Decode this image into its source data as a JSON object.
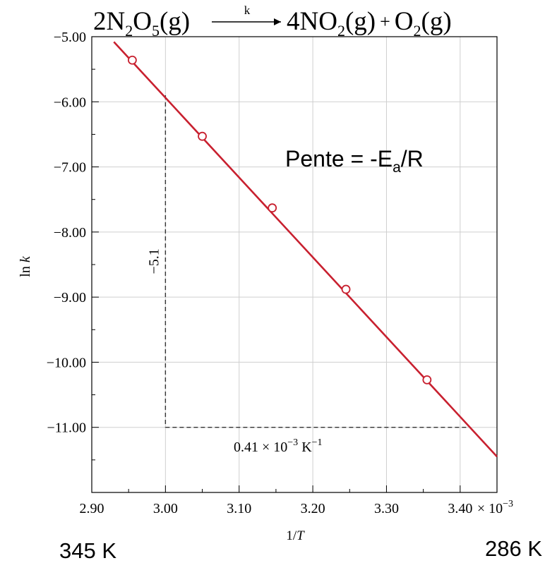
{
  "chart_data": {
    "type": "scatter",
    "title": {
      "lhs_coef": "2",
      "lhs_species": "N",
      "lhs_sub1": "2",
      "lhs_o": "O",
      "lhs_sub2": "5",
      "lhs_phase": "(g)",
      "arrow_label": "k",
      "rhs1_coef": "4",
      "rhs1_species": "NO",
      "rhs1_sub": "2",
      "rhs1_phase": "(g)",
      "plus": "+",
      "rhs2_species": "O",
      "rhs2_sub": "2",
      "rhs2_phase": "(g)"
    },
    "ylabel": {
      "prefix": "ln ",
      "var": "k"
    },
    "xlabel": {
      "prefix": "1/",
      "var": "T"
    },
    "xlim": [
      2.9,
      3.45
    ],
    "ylim": [
      -12.0,
      -5.0
    ],
    "x_ticks": [
      2.9,
      3.0,
      3.1,
      3.2,
      3.3,
      3.4
    ],
    "x_tick_labels": [
      "2.90",
      "3.00",
      "3.10",
      "3.20",
      "3.30",
      "3.40"
    ],
    "x_scale_label": {
      "times": "× 10",
      "exp": "−3"
    },
    "y_ticks": [
      -5,
      -6,
      -7,
      -8,
      -9,
      -10,
      -11
    ],
    "y_tick_labels": [
      "−5.00",
      "−6.00",
      "−7.00",
      "−8.00",
      "−9.00",
      "−10.00",
      "−11.00"
    ],
    "grid": true,
    "points": [
      {
        "x": 2.955,
        "y": -5.36
      },
      {
        "x": 3.05,
        "y": -6.53
      },
      {
        "x": 3.145,
        "y": -7.63
      },
      {
        "x": 3.245,
        "y": -8.88
      },
      {
        "x": 3.355,
        "y": -10.27
      }
    ],
    "fit_line": {
      "x": [
        2.93,
        3.45
      ],
      "y": [
        -5.08,
        -11.45
      ]
    },
    "slope_triangle": {
      "vertical": {
        "x": 3.0,
        "y_top": -5.9,
        "y_bottom": -11.0
      },
      "horizontal": {
        "y": -11.0,
        "x_left": 3.0,
        "x_right": 3.41
      },
      "rise_label": "−5.1",
      "run_label": {
        "value": "0.41 × 10",
        "exp": "−3",
        "unit": " K",
        "unit_exp": "−1"
      }
    },
    "slope_annotation": {
      "text": "Pente = -E",
      "sub": "a",
      "tail": "/R"
    },
    "temperature_labels": {
      "left": "345 K",
      "right": "286 K"
    },
    "colors": {
      "line": "#c8202f",
      "grid": "#cfcfcf",
      "axis": "#000000",
      "dash": "#333333"
    }
  }
}
